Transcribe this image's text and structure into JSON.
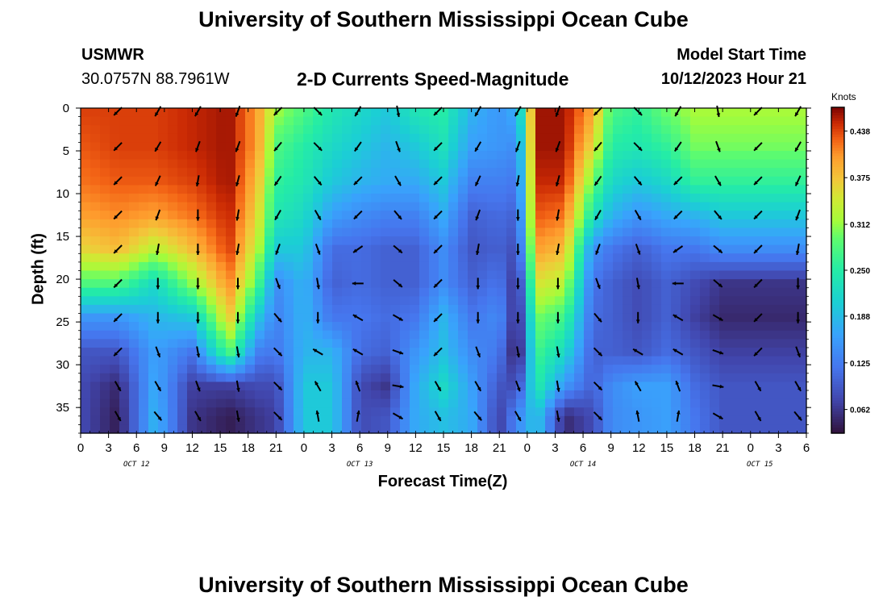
{
  "header": {
    "title": "University of Southern Mississippi Ocean Cube",
    "station": "USMWR",
    "coords": "30.0757N  88.7961W",
    "plot_title": "2-D Currents Speed-Magnitude",
    "model_label": "Model Start Time",
    "model_time": "10/12/2023 Hour 21"
  },
  "footer": {
    "title": "University of Southern Mississippi Ocean Cube"
  },
  "chart_data": {
    "type": "heatmap",
    "title": "2-D Currents Speed-Magnitude",
    "xlabel": "Forecast Time(Z)",
    "ylabel": "Depth (ft)",
    "x_tick_labels": [
      "0",
      "3",
      "6",
      "9",
      "12",
      "15",
      "18",
      "21",
      "0",
      "3",
      "6",
      "9",
      "12",
      "15",
      "18",
      "21",
      "0",
      "3",
      "6",
      "9",
      "12",
      "15",
      "18",
      "21",
      "0",
      "3",
      "6"
    ],
    "date_labels": [
      {
        "text": "OCT 12",
        "hour_index": 6
      },
      {
        "text": "OCT 13",
        "hour_index": 30
      },
      {
        "text": "OCT 14",
        "hour_index": 54
      },
      {
        "text": "OCT 15",
        "hour_index": 73
      }
    ],
    "x_range_hours": [
      0,
      78
    ],
    "y_tick_labels": [
      "0",
      "5",
      "10",
      "15",
      "20",
      "25",
      "30",
      "35"
    ],
    "y_range_ft": [
      0,
      38
    ],
    "colorbar": {
      "unit": "Knots",
      "ticks": [
        "0.438",
        "0.375",
        "0.312",
        "0.250",
        "0.188",
        "0.125",
        "0.062"
      ],
      "min": 0.03,
      "max": 0.47
    },
    "depth_levels_ft": [
      0,
      4.5,
      8.5,
      12.5,
      16.5,
      20.5,
      24.5,
      28.5,
      32.5,
      36
    ],
    "speed_profiles": [
      {
        "hour": 0,
        "values": [
          0.44,
          0.43,
          0.42,
          0.4,
          0.36,
          0.28,
          0.15,
          0.09,
          0.08,
          0.08
        ]
      },
      {
        "hour": 4,
        "values": [
          0.44,
          0.44,
          0.43,
          0.41,
          0.38,
          0.28,
          0.15,
          0.09,
          0.05,
          0.04
        ]
      },
      {
        "hour": 8,
        "values": [
          0.44,
          0.44,
          0.43,
          0.4,
          0.33,
          0.22,
          0.18,
          0.16,
          0.17,
          0.18
        ]
      },
      {
        "hour": 12,
        "values": [
          0.45,
          0.45,
          0.44,
          0.42,
          0.38,
          0.31,
          0.2,
          0.12,
          0.07,
          0.06
        ]
      },
      {
        "hour": 16,
        "values": [
          0.46,
          0.46,
          0.46,
          0.45,
          0.44,
          0.41,
          0.37,
          0.28,
          0.07,
          0.04
        ]
      },
      {
        "hour": 19,
        "values": [
          0.4,
          0.4,
          0.38,
          0.36,
          0.33,
          0.28,
          0.2,
          0.13,
          0.08,
          0.06
        ]
      },
      {
        "hour": 21,
        "values": [
          0.32,
          0.28,
          0.26,
          0.24,
          0.2,
          0.14,
          0.13,
          0.12,
          0.08,
          0.07
        ]
      },
      {
        "hour": 24,
        "values": [
          0.28,
          0.25,
          0.24,
          0.22,
          0.2,
          0.18,
          0.18,
          0.18,
          0.2,
          0.2
        ]
      },
      {
        "hour": 27,
        "values": [
          0.24,
          0.22,
          0.2,
          0.16,
          0.11,
          0.1,
          0.12,
          0.18,
          0.2,
          0.2
        ]
      },
      {
        "hour": 30,
        "values": [
          0.22,
          0.2,
          0.18,
          0.14,
          0.11,
          0.11,
          0.12,
          0.11,
          0.08,
          0.08
        ]
      },
      {
        "hour": 33,
        "values": [
          0.2,
          0.18,
          0.17,
          0.13,
          0.1,
          0.1,
          0.11,
          0.1,
          0.06,
          0.09
        ]
      },
      {
        "hour": 36,
        "values": [
          0.24,
          0.2,
          0.17,
          0.13,
          0.1,
          0.1,
          0.12,
          0.15,
          0.17,
          0.17
        ]
      },
      {
        "hour": 39,
        "values": [
          0.25,
          0.23,
          0.2,
          0.17,
          0.14,
          0.14,
          0.18,
          0.19,
          0.22,
          0.19
        ]
      },
      {
        "hour": 42,
        "values": [
          0.18,
          0.16,
          0.13,
          0.1,
          0.09,
          0.1,
          0.12,
          0.14,
          0.16,
          0.17
        ]
      },
      {
        "hour": 45,
        "values": [
          0.15,
          0.15,
          0.13,
          0.11,
          0.1,
          0.12,
          0.14,
          0.12,
          0.09,
          0.07
        ]
      },
      {
        "hour": 47,
        "values": [
          0.18,
          0.14,
          0.12,
          0.1,
          0.08,
          0.05,
          0.04,
          0.03,
          0.08,
          0.14
        ]
      },
      {
        "hour": 49,
        "values": [
          0.46,
          0.46,
          0.45,
          0.43,
          0.4,
          0.35,
          0.3,
          0.27,
          0.25,
          0.2
        ]
      },
      {
        "hour": 52,
        "values": [
          0.46,
          0.46,
          0.45,
          0.42,
          0.38,
          0.33,
          0.27,
          0.22,
          0.15,
          0.05
        ]
      },
      {
        "hour": 55,
        "values": [
          0.4,
          0.36,
          0.3,
          0.24,
          0.15,
          0.12,
          0.11,
          0.1,
          0.1,
          0.08
        ]
      },
      {
        "hour": 57,
        "values": [
          0.28,
          0.25,
          0.22,
          0.18,
          0.12,
          0.1,
          0.1,
          0.1,
          0.14,
          0.14
        ]
      },
      {
        "hour": 60,
        "values": [
          0.26,
          0.24,
          0.2,
          0.15,
          0.1,
          0.08,
          0.08,
          0.09,
          0.16,
          0.15
        ]
      },
      {
        "hour": 63,
        "values": [
          0.3,
          0.26,
          0.22,
          0.17,
          0.12,
          0.1,
          0.1,
          0.11,
          0.16,
          0.16
        ]
      },
      {
        "hour": 66,
        "values": [
          0.32,
          0.3,
          0.26,
          0.18,
          0.12,
          0.08,
          0.07,
          0.09,
          0.11,
          0.12
        ]
      },
      {
        "hour": 69,
        "values": [
          0.32,
          0.3,
          0.26,
          0.2,
          0.14,
          0.06,
          0.05,
          0.07,
          0.09,
          0.09
        ]
      }
    ],
    "hour_offset_note": "profile hour is hours since x-axis origin",
    "arrow_direction_sets_deg": [
      [
        225,
        225,
        225,
        225,
        225,
        225,
        225,
        225,
        150,
        150
      ],
      [
        210,
        210,
        205,
        200,
        190,
        180,
        180,
        160,
        150,
        140
      ],
      [
        210,
        200,
        190,
        180,
        180,
        180,
        180,
        170,
        160,
        150
      ],
      [
        200,
        200,
        195,
        190,
        190,
        180,
        180,
        170,
        170,
        170
      ],
      [
        225,
        220,
        215,
        210,
        200,
        160,
        140,
        135,
        135,
        135
      ],
      [
        135,
        135,
        140,
        150,
        160,
        170,
        180,
        300,
        330,
        350
      ],
      [
        210,
        215,
        225,
        225,
        235,
        270,
        300,
        300,
        340,
        10
      ],
      [
        170,
        160,
        150,
        140,
        130,
        130,
        120,
        110,
        100,
        120
      ]
    ]
  }
}
